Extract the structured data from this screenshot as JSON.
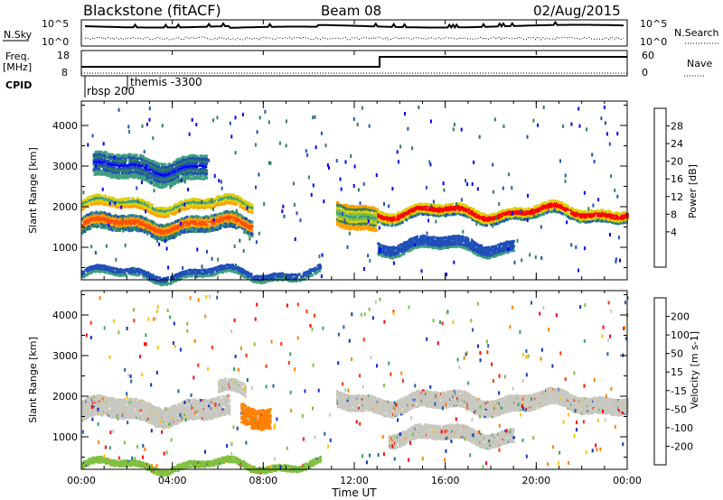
{
  "header": {
    "station": "Blackstone (fitACF)",
    "beam": "Beam 08",
    "date": "02/Aug/2015"
  },
  "top_panels": {
    "nsky_label": "N.Sky",
    "nsky_ticks": [
      "10^5",
      "10^0"
    ],
    "nsearch_label": "N.Search",
    "nsearch_ticks": [
      "10^5",
      "10^0"
    ],
    "freq_label": "Freq.",
    "freq_unit": "[MHz]",
    "freq_ticks": [
      "18",
      "8"
    ],
    "nave_label": "Nave",
    "nave_ticks": [
      "60",
      "0"
    ],
    "cpid_label": "CPID",
    "cpid_entries": [
      {
        "label": "rbsp 200",
        "start": "00:00"
      },
      {
        "label": "themis -3300",
        "start": "02:00"
      }
    ]
  },
  "chart_data": [
    {
      "type": "heatmap",
      "name": "power",
      "ylabel": "Slant Range [km]",
      "yticks": [
        "4000",
        "3000",
        "2000",
        "1000"
      ],
      "ylim": [
        200,
        4600
      ],
      "colorbar": {
        "label": "Power [dB]",
        "ticks": [
          "28",
          "24",
          "20",
          "16",
          "12",
          "8",
          "4"
        ],
        "colors": [
          "#0000ff",
          "#1f4fb8",
          "#2f7f5f",
          "#3f9f7f",
          "#7fbf3f",
          "#dfd000",
          "#ffa000",
          "#ff5000",
          "#ff0000"
        ]
      },
      "bands": [
        {
          "t0": 0.0,
          "t1": 7.5,
          "r": 1600,
          "w": 400,
          "level": "high"
        },
        {
          "t0": 0.0,
          "t1": 7.5,
          "r": 2100,
          "w": 250,
          "level": "mid"
        },
        {
          "t0": 0.5,
          "t1": 5.5,
          "r": 3000,
          "w": 600,
          "level": "low"
        },
        {
          "t0": 11.2,
          "t1": 13.0,
          "r": 1800,
          "w": 600,
          "level": "mid"
        },
        {
          "t0": 13.0,
          "t1": 24.0,
          "r": 1900,
          "w": 300,
          "level": "high"
        },
        {
          "t0": 13.0,
          "t1": 19.0,
          "r": 1100,
          "w": 300,
          "level": "low"
        },
        {
          "t0": 0.0,
          "t1": 10.5,
          "r": 400,
          "w": 200,
          "level": "low"
        }
      ]
    },
    {
      "type": "heatmap",
      "name": "velocity",
      "xlabel": "Time UT",
      "ylabel": "Slant Range [km]",
      "xticks": [
        "00:00",
        "04:00",
        "08:00",
        "12:00",
        "16:00",
        "20:00",
        "00:00"
      ],
      "yticks": [
        "4000",
        "3000",
        "2000",
        "1000"
      ],
      "ylim": [
        200,
        4600
      ],
      "colorbar": {
        "label": "Velocity [m s-1]",
        "ticks": [
          "200",
          "100",
          "50",
          "15",
          "-15",
          "-50",
          "-100",
          "-200"
        ],
        "colors": [
          "#1030c0",
          "#2060a0",
          "#3aa060",
          "#80c040",
          "#c8c8c0",
          "#ffc000",
          "#ff8000",
          "#ff3000",
          "#ff0000"
        ]
      },
      "bands": [
        {
          "t0": 0.0,
          "t1": 6.5,
          "r": 1700,
          "w": 500,
          "color": "#c8c8c0"
        },
        {
          "t0": 6.0,
          "t1": 7.2,
          "r": 2200,
          "w": 300,
          "color": "#c8c8c0"
        },
        {
          "t0": 7.0,
          "t1": 8.3,
          "r": 1600,
          "w": 500,
          "color": "#ff8000"
        },
        {
          "t0": 11.2,
          "t1": 24.0,
          "r": 1900,
          "w": 400,
          "color": "#c8c8c0"
        },
        {
          "t0": 13.5,
          "t1": 19.0,
          "r": 1100,
          "w": 350,
          "color": "#c8c8c0"
        },
        {
          "t0": 0.0,
          "t1": 10.5,
          "r": 350,
          "w": 150,
          "color": "#80c040"
        }
      ]
    }
  ]
}
